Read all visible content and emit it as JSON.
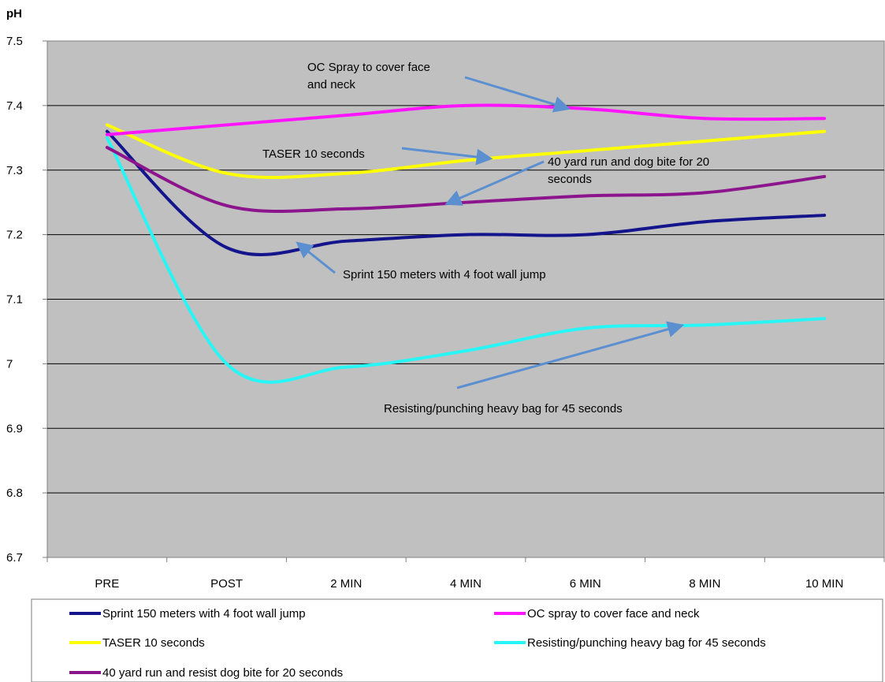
{
  "chart_data": {
    "type": "line",
    "ylabel": "pH",
    "xlabel": "",
    "ylim": [
      6.7,
      7.5
    ],
    "yticks": [
      7.5,
      7.4,
      7.3,
      7.2,
      7.1,
      7,
      6.9,
      6.8,
      6.7
    ],
    "ytick_labels": [
      "7.5",
      "7.4",
      "7.3",
      "7.2",
      "7.1",
      "7",
      "6.9",
      "6.8",
      "6.7"
    ],
    "categories": [
      "PRE",
      "POST",
      "2 MIN",
      "4 MIN",
      "6 MIN",
      "8 MIN",
      "10 MIN"
    ],
    "grid": true,
    "smooth": true,
    "plot_background": "#c0c0c0",
    "legend_position": "bottom",
    "series": [
      {
        "name": "Sprint 150 meters with 4 foot wall jump",
        "color": "#14148c",
        "values": [
          7.36,
          7.18,
          7.19,
          7.2,
          7.2,
          7.22,
          7.23
        ]
      },
      {
        "name": "OC spray to cover face and neck",
        "color": "#ff14ff",
        "values": [
          7.355,
          7.37,
          7.385,
          7.4,
          7.395,
          7.38,
          7.38
        ]
      },
      {
        "name": "TASER 10 seconds",
        "color": "#ffff00",
        "values": [
          7.37,
          7.295,
          7.295,
          7.315,
          7.33,
          7.345,
          7.36
        ]
      },
      {
        "name": "Resisting/punching heavy bag for 45 seconds",
        "color": "#28f5f5",
        "values": [
          7.35,
          7.0,
          6.995,
          7.02,
          7.055,
          7.06,
          7.07
        ]
      },
      {
        "name": "40 yard run and resist dog bite for 20 seconds",
        "color": "#8c148c",
        "values": [
          7.335,
          7.245,
          7.24,
          7.25,
          7.26,
          7.265,
          7.29
        ]
      }
    ],
    "annotations": [
      {
        "lines": [
          "OC Spray to cover face",
          "and neck"
        ],
        "series_index": 1,
        "target_x": 3.85
      },
      {
        "lines": [
          "TASER 10 seconds"
        ],
        "series_index": 2,
        "target_x": 3.2
      },
      {
        "lines": [
          "40 yard run and dog bite for 20",
          "seconds"
        ],
        "series_index": 4,
        "target_x": 2.85
      },
      {
        "lines": [
          "Sprint 150 meters with 4 foot wall jump"
        ],
        "series_index": 0,
        "target_x": 1.6
      },
      {
        "lines": [
          "Resisting/punching heavy bag for 45 seconds"
        ],
        "series_index": 3,
        "target_x": 4.8
      }
    ]
  },
  "colors": {
    "arrow": "#5b8fd0",
    "grid": "#000000",
    "axis": "#7f7f7f"
  }
}
